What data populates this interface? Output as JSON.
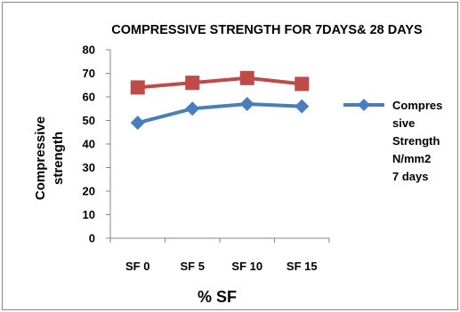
{
  "chart_data": {
    "type": "line",
    "title": "COMPRESSIVE STRENGTH FOR 7DAYS& 28 DAYS",
    "xlabel": "% SF",
    "ylabel_lines": [
      "Compressive",
      "strength"
    ],
    "categories": [
      "SF 0",
      "SF 5",
      "SF 10",
      "SF 15"
    ],
    "ylim": [
      0,
      80
    ],
    "yticks": [
      0,
      10,
      20,
      30,
      40,
      50,
      60,
      70,
      80
    ],
    "grid": false,
    "legend_position": "right",
    "series": [
      {
        "name_lines": [
          "Compres",
          "sive",
          "Strength",
          "N/mm2",
          "7 days"
        ],
        "values": [
          49,
          55,
          57,
          56
        ],
        "color": "#4a7ebb",
        "marker": "diamond"
      },
      {
        "values": [
          64,
          66,
          68,
          65.5
        ],
        "color": "#be4b48",
        "marker": "square"
      }
    ]
  }
}
